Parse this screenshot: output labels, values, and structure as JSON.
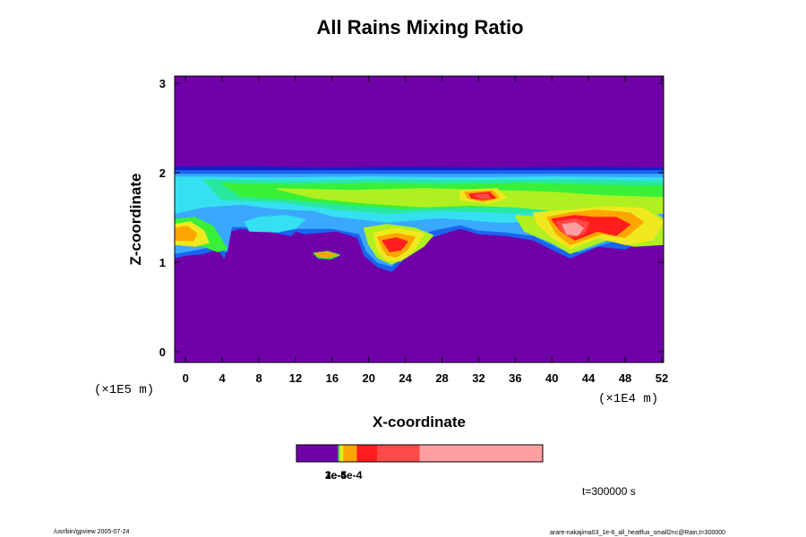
{
  "chart_data": {
    "type": "heatmap",
    "title": "All Rains Mixing Ratio",
    "xlabel": "X-coordinate",
    "ylabel": "Z-coordinate",
    "x_scale_note": "(×1E4 m)",
    "y_scale_note": "(×1E5 m)",
    "x_ticks": [
      0,
      4,
      8,
      12,
      16,
      20,
      24,
      28,
      32,
      36,
      40,
      44,
      48,
      52
    ],
    "y_ticks": [
      0,
      1,
      2,
      3
    ],
    "xlim": [
      -1.2,
      52.2
    ],
    "ylim": [
      -0.12,
      3.08
    ],
    "background_color": "#7000a8",
    "palette": [
      "#7000a8",
      "#1020c8",
      "#1a64f0",
      "#3aa8ff",
      "#35e0f0",
      "#28e8a0",
      "#38f038",
      "#b0f020",
      "#f0e81e",
      "#ffa500",
      "#ff1e1e",
      "#ff4848",
      "#ffa0a0"
    ],
    "regions": [
      {
        "color": "#1020c8",
        "points": [
          [
            -1.2,
            2.06
          ],
          [
            6,
            2.07
          ],
          [
            14,
            2.05
          ],
          [
            24,
            2.06
          ],
          [
            34,
            2.05
          ],
          [
            44,
            2.06
          ],
          [
            52.2,
            2.05
          ],
          [
            52.2,
            1.99
          ],
          [
            -1.2,
            1.99
          ]
        ]
      },
      {
        "color": "#1a64f0",
        "points": [
          [
            -1.2,
            2.02
          ],
          [
            52.2,
            2.02
          ],
          [
            52.2,
            1.35
          ],
          [
            50,
            1.25
          ],
          [
            48,
            1.15
          ],
          [
            45,
            1.18
          ],
          [
            42,
            1.05
          ],
          [
            40.5,
            1.12
          ],
          [
            38,
            1.25
          ],
          [
            35,
            1.3
          ],
          [
            32,
            1.32
          ],
          [
            30,
            1.38
          ],
          [
            28,
            1.32
          ],
          [
            26,
            1.25
          ],
          [
            24,
            1.05
          ],
          [
            22.5,
            0.9
          ],
          [
            21,
            0.95
          ],
          [
            19.5,
            1.08
          ],
          [
            18.8,
            1.28
          ],
          [
            16.5,
            1.35
          ],
          [
            13,
            1.32
          ],
          [
            12,
            1.35
          ],
          [
            11.5,
            1.3
          ],
          [
            9,
            1.35
          ],
          [
            6,
            1.38
          ],
          [
            4.8,
            1.35
          ],
          [
            4.2,
            1.05
          ],
          [
            3.5,
            1.15
          ],
          [
            2,
            1.1
          ],
          [
            0,
            1.08
          ],
          [
            -1.2,
            1.05
          ]
        ]
      },
      {
        "color": "#3aa8ff",
        "points": [
          [
            -1.2,
            1.98
          ],
          [
            52.2,
            1.98
          ],
          [
            52.2,
            1.4
          ],
          [
            49,
            1.28
          ],
          [
            46,
            1.22
          ],
          [
            43,
            1.12
          ],
          [
            41,
            1.15
          ],
          [
            38,
            1.3
          ],
          [
            35,
            1.34
          ],
          [
            32,
            1.36
          ],
          [
            30,
            1.42
          ],
          [
            27,
            1.36
          ],
          [
            25,
            1.3
          ],
          [
            23.5,
            1.1
          ],
          [
            22.5,
            0.96
          ],
          [
            21,
            1.0
          ],
          [
            19.8,
            1.12
          ],
          [
            19,
            1.32
          ],
          [
            16,
            1.38
          ],
          [
            12,
            1.38
          ],
          [
            8,
            1.4
          ],
          [
            5,
            1.4
          ],
          [
            4.5,
            1.12
          ],
          [
            3,
            1.18
          ],
          [
            0,
            1.12
          ],
          [
            -1.2,
            1.1
          ]
        ]
      },
      {
        "color": "#35e0f0",
        "points": [
          [
            7,
            1.35
          ],
          [
            10,
            1.34
          ],
          [
            12,
            1.38
          ],
          [
            13,
            1.48
          ],
          [
            11,
            1.52
          ],
          [
            8,
            1.5
          ],
          [
            6.5,
            1.45
          ]
        ]
      },
      {
        "color": "#35e0f0",
        "points": [
          [
            -1.2,
            1.95
          ],
          [
            10,
            1.94
          ],
          [
            20,
            1.95
          ],
          [
            30,
            1.94
          ],
          [
            40,
            1.95
          ],
          [
            52.2,
            1.94
          ],
          [
            52.2,
            1.6
          ],
          [
            46,
            1.5
          ],
          [
            40,
            1.45
          ],
          [
            34,
            1.45
          ],
          [
            28,
            1.5
          ],
          [
            22,
            1.45
          ],
          [
            16,
            1.52
          ],
          [
            14,
            1.58
          ],
          [
            10,
            1.6
          ],
          [
            6,
            1.65
          ],
          [
            2,
            1.62
          ],
          [
            -1.2,
            1.55
          ]
        ]
      },
      {
        "color": "#28e8a0",
        "points": [
          [
            2,
            1.92
          ],
          [
            12,
            1.9
          ],
          [
            22,
            1.92
          ],
          [
            32,
            1.91
          ],
          [
            42,
            1.92
          ],
          [
            52.2,
            1.9
          ],
          [
            52.2,
            1.65
          ],
          [
            46,
            1.6
          ],
          [
            40,
            1.55
          ],
          [
            34,
            1.56
          ],
          [
            28,
            1.58
          ],
          [
            22,
            1.55
          ],
          [
            16,
            1.6
          ],
          [
            10,
            1.68
          ],
          [
            4,
            1.7
          ]
        ]
      },
      {
        "color": "#38f038",
        "points": [
          [
            4,
            1.88
          ],
          [
            12,
            1.86
          ],
          [
            20,
            1.88
          ],
          [
            28,
            1.86
          ],
          [
            36,
            1.88
          ],
          [
            44,
            1.86
          ],
          [
            52.2,
            1.85
          ],
          [
            52.2,
            1.6
          ],
          [
            48,
            1.55
          ],
          [
            44,
            1.58
          ],
          [
            40,
            1.6
          ],
          [
            36,
            1.62
          ],
          [
            30,
            1.62
          ],
          [
            24,
            1.6
          ],
          [
            18,
            1.64
          ],
          [
            12,
            1.7
          ],
          [
            6,
            1.74
          ]
        ]
      },
      {
        "color": "#38f038",
        "points": [
          [
            14,
            1.1
          ],
          [
            15.5,
            1.12
          ],
          [
            16.8,
            1.08
          ],
          [
            15.8,
            1.04
          ],
          [
            14.5,
            1.05
          ]
        ]
      },
      {
        "color": "#38f038",
        "points": [
          [
            -1.2,
            1.48
          ],
          [
            1,
            1.5
          ],
          [
            3,
            1.4
          ],
          [
            4.5,
            1.15
          ],
          [
            3.5,
            1.12
          ],
          [
            2,
            1.18
          ],
          [
            -1.2,
            1.2
          ]
        ]
      },
      {
        "color": "#b0f020",
        "points": [
          [
            10,
            1.82
          ],
          [
            18,
            1.8
          ],
          [
            26,
            1.82
          ],
          [
            34,
            1.8
          ],
          [
            40,
            1.78
          ],
          [
            46,
            1.74
          ],
          [
            52.2,
            1.72
          ],
          [
            52.2,
            1.55
          ],
          [
            48,
            1.5
          ],
          [
            44,
            1.55
          ],
          [
            40,
            1.58
          ],
          [
            36,
            1.62
          ],
          [
            31,
            1.64
          ],
          [
            26,
            1.62
          ],
          [
            20,
            1.66
          ],
          [
            14,
            1.72
          ]
        ]
      },
      {
        "color": "#b0f020",
        "points": [
          [
            19.5,
            1.38
          ],
          [
            22,
            1.42
          ],
          [
            25,
            1.38
          ],
          [
            27,
            1.3
          ],
          [
            26,
            1.18
          ],
          [
            24,
            1.05
          ],
          [
            22.5,
            0.98
          ],
          [
            21,
            1.05
          ],
          [
            20,
            1.2
          ]
        ]
      },
      {
        "color": "#b0f020",
        "points": [
          [
            36,
            1.52
          ],
          [
            39,
            1.5
          ],
          [
            43,
            1.58
          ],
          [
            47,
            1.62
          ],
          [
            51,
            1.56
          ],
          [
            52.2,
            1.48
          ],
          [
            52.2,
            1.2
          ],
          [
            49,
            1.18
          ],
          [
            46,
            1.25
          ],
          [
            42,
            1.1
          ],
          [
            40,
            1.22
          ],
          [
            37,
            1.35
          ]
        ]
      },
      {
        "color": "#f0e81e",
        "points": [
          [
            30,
            1.8
          ],
          [
            34,
            1.82
          ],
          [
            35,
            1.72
          ],
          [
            33,
            1.66
          ],
          [
            30,
            1.7
          ]
        ]
      },
      {
        "color": "#f0e81e",
        "points": [
          [
            20.5,
            1.32
          ],
          [
            23,
            1.38
          ],
          [
            26,
            1.32
          ],
          [
            25,
            1.15
          ],
          [
            23.5,
            1.02
          ],
          [
            22,
            1.02
          ],
          [
            21,
            1.12
          ]
        ]
      },
      {
        "color": "#f0e81e",
        "points": [
          [
            38,
            1.55
          ],
          [
            42,
            1.58
          ],
          [
            46,
            1.62
          ],
          [
            50,
            1.6
          ],
          [
            52.2,
            1.45
          ],
          [
            51,
            1.25
          ],
          [
            48,
            1.2
          ],
          [
            45,
            1.28
          ],
          [
            42,
            1.15
          ],
          [
            40,
            1.28
          ],
          [
            38.5,
            1.42
          ]
        ]
      },
      {
        "color": "#f0e81e",
        "points": [
          [
            -1.2,
            1.42
          ],
          [
            0.5,
            1.45
          ],
          [
            2,
            1.35
          ],
          [
            2.5,
            1.22
          ],
          [
            1,
            1.18
          ],
          [
            -1.2,
            1.2
          ]
        ]
      },
      {
        "color": "#ffa500",
        "points": [
          [
            30.5,
            1.78
          ],
          [
            33.5,
            1.8
          ],
          [
            34.2,
            1.72
          ],
          [
            32.5,
            1.68
          ],
          [
            30.8,
            1.72
          ]
        ]
      },
      {
        "color": "#ffa500",
        "points": [
          [
            21,
            1.28
          ],
          [
            23,
            1.32
          ],
          [
            25,
            1.28
          ],
          [
            24.2,
            1.14
          ],
          [
            23,
            1.06
          ],
          [
            22,
            1.08
          ],
          [
            21.5,
            1.16
          ]
        ]
      },
      {
        "color": "#ffa500",
        "points": [
          [
            39.5,
            1.5
          ],
          [
            42,
            1.55
          ],
          [
            45,
            1.58
          ],
          [
            48.5,
            1.55
          ],
          [
            50,
            1.45
          ],
          [
            48,
            1.28
          ],
          [
            45.5,
            1.32
          ],
          [
            42,
            1.2
          ],
          [
            40.5,
            1.32
          ]
        ]
      },
      {
        "color": "#ffa500",
        "points": [
          [
            -1.2,
            1.38
          ],
          [
            0.2,
            1.4
          ],
          [
            1.2,
            1.32
          ],
          [
            0.8,
            1.24
          ],
          [
            -1.2,
            1.25
          ]
        ]
      },
      {
        "color": "#ffa500",
        "points": [
          [
            14.2,
            1.1
          ],
          [
            15.5,
            1.11
          ],
          [
            16.5,
            1.08
          ],
          [
            15.5,
            1.06
          ],
          [
            14.6,
            1.07
          ]
        ]
      },
      {
        "color": "#ff1e1e",
        "points": [
          [
            31,
            1.76
          ],
          [
            33.2,
            1.78
          ],
          [
            33.8,
            1.72
          ],
          [
            32.4,
            1.7
          ],
          [
            31.2,
            1.72
          ]
        ]
      },
      {
        "color": "#ff1e1e",
        "points": [
          [
            40,
            1.48
          ],
          [
            42.5,
            1.52
          ],
          [
            44.5,
            1.5
          ],
          [
            47,
            1.5
          ],
          [
            48.5,
            1.42
          ],
          [
            47,
            1.3
          ],
          [
            45,
            1.35
          ],
          [
            42.5,
            1.25
          ],
          [
            41,
            1.35
          ]
        ]
      },
      {
        "color": "#ff1e1e",
        "points": [
          [
            21.5,
            1.24
          ],
          [
            23,
            1.27
          ],
          [
            24.2,
            1.23
          ],
          [
            23.5,
            1.14
          ],
          [
            22.3,
            1.12
          ]
        ]
      },
      {
        "color": "#ff4848",
        "points": [
          [
            40.5,
            1.45
          ],
          [
            42.5,
            1.48
          ],
          [
            44,
            1.44
          ],
          [
            43.5,
            1.32
          ],
          [
            42,
            1.28
          ],
          [
            41,
            1.36
          ]
        ]
      },
      {
        "color": "#ff4848",
        "points": [
          [
            31.6,
            1.75
          ],
          [
            32.9,
            1.76
          ],
          [
            33.2,
            1.72
          ],
          [
            32.2,
            1.71
          ]
        ]
      },
      {
        "color": "#ffa0a0",
        "points": [
          [
            41.2,
            1.42
          ],
          [
            42.6,
            1.44
          ],
          [
            43.4,
            1.38
          ],
          [
            42.8,
            1.3
          ],
          [
            41.6,
            1.32
          ]
        ]
      }
    ],
    "colorbar": {
      "label": "1e-5",
      "label2": "2e-4",
      "label_overlap": "3e-5e-4",
      "segments": [
        {
          "from": 0.0,
          "to": 0.17,
          "color": "#7000a8"
        },
        {
          "from": 0.17,
          "to": 0.175,
          "color": "#38f038"
        },
        {
          "from": 0.175,
          "to": 0.18,
          "color": "#b0f020"
        },
        {
          "from": 0.18,
          "to": 0.19,
          "color": "#f0e81e"
        },
        {
          "from": 0.19,
          "to": 0.245,
          "color": "#ffa500"
        },
        {
          "from": 0.245,
          "to": 0.33,
          "color": "#ff1e1e"
        },
        {
          "from": 0.33,
          "to": 0.5,
          "color": "#ff4848"
        },
        {
          "from": 0.5,
          "to": 1.0,
          "color": "#ffa0a0"
        }
      ]
    }
  },
  "time_label": "t=300000 s",
  "footer_left": "/usr/bin/gpview 2005-07-24",
  "footer_right": "arare-nakajima03_1e-6_all_heatflux_small2nc@Rain,t=300000"
}
